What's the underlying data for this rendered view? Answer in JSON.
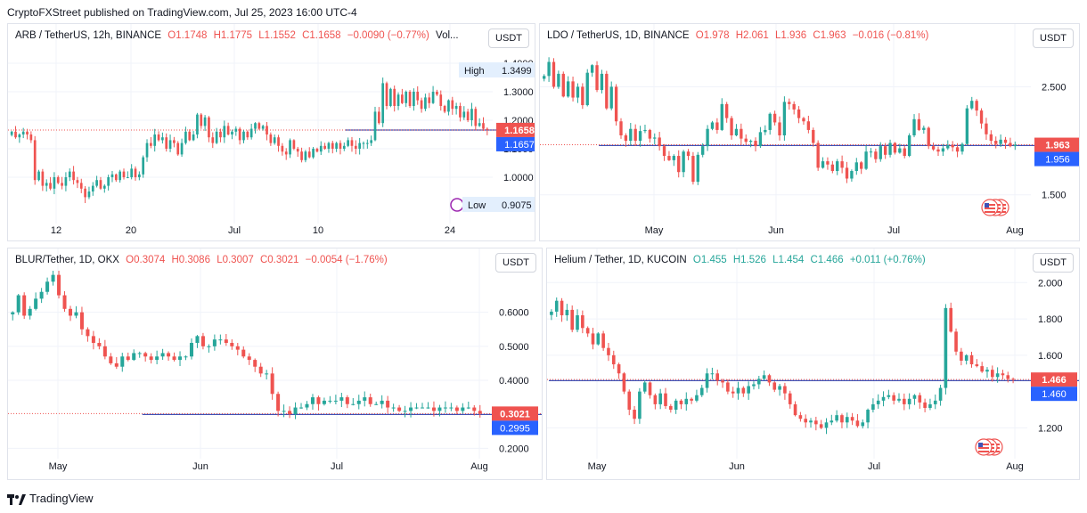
{
  "header": {
    "text": "CryptoFXStreet published on TradingView.com, Jul 25, 2023 16:00 UTC-4"
  },
  "footer": {
    "brand": "TradingView"
  },
  "colors": {
    "up": "#26a69a",
    "down": "#ef5350",
    "hline": "#3f51b5",
    "last_dotted": "#ef5350",
    "grid": "#f0f3fa",
    "blue_label": "#2962ff"
  },
  "panels": [
    {
      "id": "arb",
      "symbol": "ARB / TetherUS, 12h, BINANCE",
      "o": "O1.1748",
      "h": "H1.1775",
      "l": "L1.1552",
      "c": "C1.1658",
      "chg": "−0.0090 (−0.77%)",
      "extra": "Vol...",
      "chg_dir": "down",
      "currency_btn": "USDT",
      "y_ticks": [
        "1.4000",
        "1.3000",
        "1.2000",
        "1.1000",
        "1.0000"
      ],
      "x_ticks": [
        "12",
        "20",
        "Jul",
        "10",
        "24"
      ],
      "high_label": "High",
      "high_value": "1.3499",
      "low_label": "Low",
      "low_value": "0.9075",
      "price_label": "1.1658",
      "line_label": "1.1657"
    },
    {
      "id": "ldo",
      "symbol": "LDO / TetherUS, 1D, BINANCE",
      "o": "O1.978",
      "h": "H2.061",
      "l": "L1.936",
      "c": "C1.963",
      "chg": "−0.016 (−0.81%)",
      "extra": "",
      "chg_dir": "down",
      "currency_btn": "USDT",
      "y_ticks": [
        "2.500",
        "1.500"
      ],
      "x_ticks": [
        "May",
        "Jun",
        "Jul",
        "Aug"
      ],
      "price_label": "1.963",
      "line_label": "1.956"
    },
    {
      "id": "blur",
      "symbol": "BLUR/Tether, 1D, OKX",
      "o": "O0.3074",
      "h": "H0.3086",
      "l": "L0.3007",
      "c": "C0.3021",
      "chg": "−0.0054 (−1.76%)",
      "extra": "",
      "chg_dir": "down",
      "currency_btn": "USDT",
      "y_ticks": [
        "0.6000",
        "0.5000",
        "0.4000",
        "0.2000"
      ],
      "x_ticks": [
        "May",
        "Jun",
        "Jul",
        "Aug"
      ],
      "price_label": "0.3021",
      "line_label": "0.2995"
    },
    {
      "id": "helium",
      "symbol": "Helium / Tether, 1D, KUCOIN",
      "o": "O1.455",
      "h": "H1.526",
      "l": "L1.454",
      "c": "C1.466",
      "chg": "+0.011 (+0.76%)",
      "extra": "",
      "chg_dir": "up",
      "currency_btn": "USDT",
      "y_ticks": [
        "2.000",
        "1.800",
        "1.600",
        "1.200"
      ],
      "x_ticks": [
        "May",
        "Jun",
        "Jul",
        "Aug"
      ],
      "price_label": "1.466",
      "line_label": "1.460"
    }
  ],
  "chart_data": [
    {
      "type": "candlestick",
      "title": "ARB / TetherUS, 12h, BINANCE",
      "ylim": [
        0.85,
        1.45
      ],
      "x_ticks": [
        "12",
        "20",
        "Jul",
        "10",
        "24"
      ],
      "hline": 1.1657,
      "last": 1.1658,
      "closes": [
        1.16,
        1.14,
        1.15,
        1.16,
        1.15,
        1.13,
        0.99,
        1.02,
        0.97,
        0.98,
        0.96,
        1.0,
        0.98,
        0.97,
        1.0,
        1.02,
        0.99,
        0.98,
        0.96,
        0.93,
        0.95,
        0.97,
        0.99,
        0.96,
        0.97,
        1.0,
        1.01,
        0.99,
        1.02,
        1.0,
        1.0,
        1.03,
        1.0,
        1.01,
        1.07,
        1.12,
        1.11,
        1.15,
        1.13,
        1.14,
        1.1,
        1.13,
        1.12,
        1.08,
        1.12,
        1.16,
        1.13,
        1.15,
        1.22,
        1.18,
        1.21,
        1.14,
        1.12,
        1.16,
        1.14,
        1.18,
        1.15,
        1.16,
        1.17,
        1.13,
        1.16,
        1.14,
        1.17,
        1.19,
        1.17,
        1.18,
        1.15,
        1.12,
        1.14,
        1.11,
        1.09,
        1.08,
        1.13,
        1.1,
        1.09,
        1.06,
        1.09,
        1.07,
        1.1,
        1.09,
        1.11,
        1.1,
        1.12,
        1.1,
        1.12,
        1.1,
        1.11,
        1.13,
        1.11,
        1.1,
        1.12,
        1.12,
        1.12,
        1.13,
        1.23,
        1.19,
        1.33,
        1.25,
        1.31,
        1.25,
        1.29,
        1.26,
        1.3,
        1.25,
        1.3,
        1.27,
        1.24,
        1.28,
        1.26,
        1.3,
        1.29,
        1.25,
        1.23,
        1.27,
        1.24,
        1.25,
        1.21,
        1.23,
        1.2,
        1.24,
        1.18,
        1.19,
        1.17,
        1.1658
      ]
    },
    {
      "type": "candlestick",
      "title": "LDO / TetherUS, 1D, BINANCE",
      "ylim": [
        1.25,
        2.85
      ],
      "x_ticks": [
        "May",
        "Jun",
        "Jul",
        "Aug"
      ],
      "hline": 1.956,
      "last": 1.963,
      "closes": [
        2.6,
        2.73,
        2.5,
        2.62,
        2.41,
        2.55,
        2.4,
        2.5,
        2.33,
        2.63,
        2.7,
        2.47,
        2.62,
        2.3,
        2.5,
        2.18,
        2.05,
        2.0,
        2.11,
        2.0,
        2.09,
        2.1,
        2.02,
        2.03,
        1.95,
        1.86,
        1.82,
        1.86,
        1.71,
        1.9,
        1.86,
        1.62,
        1.87,
        1.95,
        2.11,
        2.17,
        2.1,
        2.34,
        2.21,
        2.05,
        2.11,
        2.02,
        1.99,
        2.0,
        1.95,
        2.08,
        2.1,
        2.25,
        2.17,
        2.05,
        2.36,
        2.34,
        2.29,
        2.21,
        2.18,
        2.1,
        1.98,
        1.75,
        1.81,
        1.78,
        1.72,
        1.81,
        1.75,
        1.65,
        1.72,
        1.8,
        1.74,
        1.9,
        1.9,
        1.83,
        1.95,
        1.87,
        1.98,
        1.89,
        1.93,
        1.86,
        2.05,
        2.2,
        2.1,
        2.12,
        1.95,
        1.92,
        1.9,
        1.93,
        1.96,
        1.94,
        1.9,
        1.97,
        2.3,
        2.37,
        2.28,
        2.16,
        2.06,
        2.0,
        1.97,
        2.01,
        1.98,
        1.95,
        1.963
      ]
    },
    {
      "type": "candlestick",
      "title": "BLUR/Tether, 1D, OKX",
      "ylim": [
        0.18,
        0.73
      ],
      "x_ticks": [
        "May",
        "Jun",
        "Jul",
        "Aug"
      ],
      "hline": 0.2995,
      "last": 0.3021,
      "closes": [
        0.6,
        0.65,
        0.59,
        0.61,
        0.64,
        0.66,
        0.69,
        0.71,
        0.65,
        0.61,
        0.59,
        0.6,
        0.55,
        0.53,
        0.51,
        0.5,
        0.47,
        0.45,
        0.44,
        0.47,
        0.46,
        0.48,
        0.48,
        0.47,
        0.46,
        0.47,
        0.48,
        0.47,
        0.46,
        0.47,
        0.47,
        0.51,
        0.53,
        0.5,
        0.5,
        0.52,
        0.52,
        0.51,
        0.5,
        0.49,
        0.47,
        0.46,
        0.44,
        0.42,
        0.42,
        0.36,
        0.31,
        0.31,
        0.3,
        0.32,
        0.32,
        0.33,
        0.35,
        0.33,
        0.34,
        0.34,
        0.34,
        0.35,
        0.33,
        0.33,
        0.34,
        0.35,
        0.33,
        0.33,
        0.34,
        0.32,
        0.32,
        0.31,
        0.31,
        0.32,
        0.32,
        0.32,
        0.32,
        0.31,
        0.32,
        0.32,
        0.32,
        0.31,
        0.32,
        0.32,
        0.31,
        0.3021
      ]
    },
    {
      "type": "candlestick",
      "title": "Helium / Tether, 1D, KUCOIN",
      "ylim": [
        1.05,
        2.08
      ],
      "x_ticks": [
        "May",
        "Jun",
        "Jul",
        "Aug"
      ],
      "hline": 1.46,
      "last": 1.466,
      "closes": [
        1.84,
        1.9,
        1.82,
        1.85,
        1.74,
        1.82,
        1.75,
        1.72,
        1.66,
        1.72,
        1.64,
        1.6,
        1.55,
        1.5,
        1.4,
        1.3,
        1.25,
        1.4,
        1.45,
        1.38,
        1.33,
        1.39,
        1.32,
        1.3,
        1.35,
        1.33,
        1.36,
        1.35,
        1.38,
        1.42,
        1.5,
        1.5,
        1.46,
        1.45,
        1.4,
        1.39,
        1.42,
        1.39,
        1.43,
        1.44,
        1.47,
        1.49,
        1.45,
        1.41,
        1.43,
        1.39,
        1.33,
        1.27,
        1.25,
        1.23,
        1.24,
        1.22,
        1.2,
        1.23,
        1.24,
        1.27,
        1.23,
        1.26,
        1.24,
        1.21,
        1.23,
        1.3,
        1.33,
        1.35,
        1.37,
        1.38,
        1.35,
        1.36,
        1.33,
        1.36,
        1.38,
        1.34,
        1.31,
        1.33,
        1.35,
        1.42,
        1.86,
        1.73,
        1.62,
        1.57,
        1.6,
        1.55,
        1.54,
        1.51,
        1.52,
        1.48,
        1.5,
        1.49,
        1.47,
        1.466
      ]
    }
  ]
}
